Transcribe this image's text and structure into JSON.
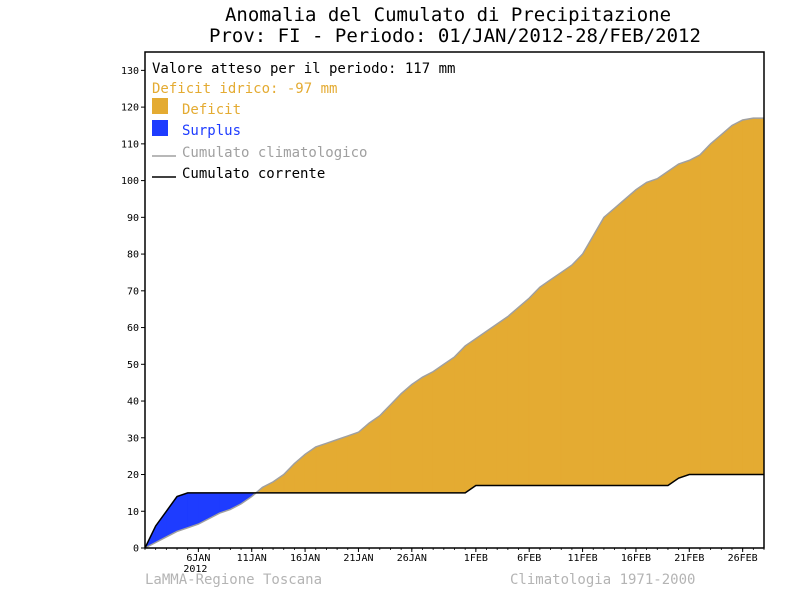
{
  "chart_data": {
    "type": "area",
    "title": "Anomalia del Cumulato di Precipitazione",
    "subtitle": "Prov: FI - Periodo: 01/JAN/2012-28/FEB/2012",
    "xlabel": "",
    "ylabel": "",
    "ylim": [
      0,
      135
    ],
    "yticks": [
      0,
      10,
      20,
      30,
      40,
      50,
      60,
      70,
      80,
      90,
      100,
      110,
      120,
      130
    ],
    "x_day_range": [
      1,
      59
    ],
    "xticks": [
      {
        "day": 6,
        "label": "6JAN",
        "sublabel": "2012"
      },
      {
        "day": 11,
        "label": "11JAN"
      },
      {
        "day": 16,
        "label": "16JAN"
      },
      {
        "day": 21,
        "label": "21JAN"
      },
      {
        "day": 26,
        "label": "26JAN"
      },
      {
        "day": 32,
        "label": "1FEB"
      },
      {
        "day": 37,
        "label": "6FEB"
      },
      {
        "day": 42,
        "label": "11FEB"
      },
      {
        "day": 47,
        "label": "16FEB"
      },
      {
        "day": 52,
        "label": "21FEB"
      },
      {
        "day": 57,
        "label": "26FEB"
      }
    ],
    "legend": {
      "expected": "Valore atteso per il periodo: 117 mm",
      "deficit_total": "Deficit idrico: -97 mm",
      "deficit": "Deficit",
      "surplus": "Surplus",
      "climatological": "Cumulato climatologico",
      "current": "Cumulato corrente"
    },
    "legend_position": "top-left",
    "grid": false,
    "series": [
      {
        "name": "Cumulato climatologico",
        "x": [
          1,
          2,
          3,
          4,
          5,
          6,
          7,
          8,
          9,
          10,
          11,
          12,
          13,
          14,
          15,
          16,
          17,
          18,
          19,
          20,
          21,
          22,
          23,
          24,
          25,
          26,
          27,
          28,
          29,
          30,
          31,
          32,
          33,
          34,
          35,
          36,
          37,
          38,
          39,
          40,
          41,
          42,
          43,
          44,
          45,
          46,
          47,
          48,
          49,
          50,
          51,
          52,
          53,
          54,
          55,
          56,
          57,
          58,
          59
        ],
        "values": [
          0,
          1.5,
          3,
          4.5,
          5.5,
          6.5,
          8,
          9.5,
          10.5,
          12,
          14,
          16.5,
          18,
          20,
          23,
          25.5,
          27.5,
          28.5,
          29.5,
          30.5,
          31.5,
          34,
          36,
          39,
          42,
          44.5,
          46.5,
          48,
          50,
          52,
          55,
          57,
          59,
          61,
          63,
          65.5,
          68,
          71,
          73,
          75,
          77,
          80,
          85,
          90,
          92.5,
          95,
          97.5,
          99.5,
          100.5,
          102.5,
          104.5,
          105.5,
          107,
          110,
          112.5,
          115,
          116.5,
          117,
          117
        ]
      },
      {
        "name": "Cumulato corrente",
        "x": [
          1,
          2,
          3,
          4,
          5,
          6,
          7,
          8,
          9,
          10,
          11,
          12,
          13,
          14,
          15,
          16,
          17,
          18,
          19,
          20,
          21,
          22,
          23,
          24,
          25,
          26,
          27,
          28,
          29,
          30,
          31,
          32,
          33,
          34,
          35,
          36,
          37,
          38,
          39,
          40,
          41,
          42,
          43,
          44,
          45,
          46,
          47,
          48,
          49,
          50,
          51,
          52,
          53,
          54,
          55,
          56,
          57,
          58,
          59
        ],
        "values": [
          0,
          6,
          10,
          14,
          15,
          15,
          15,
          15,
          15,
          15,
          15,
          15,
          15,
          15,
          15,
          15,
          15,
          15,
          15,
          15,
          15,
          15,
          15,
          15,
          15,
          15,
          15,
          15,
          15,
          15,
          15,
          17,
          17,
          17,
          17,
          17,
          17,
          17,
          17,
          17,
          17,
          17,
          17,
          17,
          17,
          17,
          17,
          17,
          17,
          17,
          19,
          20,
          20,
          20,
          20,
          20,
          20,
          20,
          20
        ]
      }
    ],
    "colors": {
      "deficit": "#e4ab32",
      "surplus": "#1e3cff",
      "climatological": "#a0a0a0",
      "current": "#000000",
      "footer": "#b4b4b4"
    },
    "footer_left": "LaMMA-Regione Toscana",
    "footer_right": "Climatologia 1971-2000"
  }
}
